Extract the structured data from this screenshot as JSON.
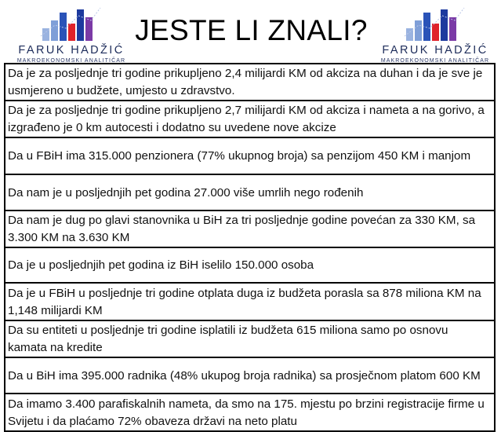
{
  "header": {
    "title": "JESTE LI ZNALI?",
    "logo_left": {
      "name": "FARUK HADŽIĆ",
      "subtitle": "MAKROEKONOMSKI ANALITIČAR",
      "colors": [
        "#9ab3e0",
        "#2a53b8",
        "#e0232b",
        "#7b3aa6",
        "#1d2c5a"
      ]
    },
    "logo_right": {
      "name": "FARUK HADŽIĆ",
      "subtitle": "MAKROEKONOMSKI ANALITIČAR"
    }
  },
  "facts": [
    "Da je za posljednje tri godine prikupljeno 2,4 milijardi KM od akciza na duhan i da je sve je usmjereno u budžete, umjesto u zdravstvo.",
    "Da je za posljednje tri godine prikupljeno 2,7 milijardi KM od akciza i nameta a na gorivo, a izgrađeno je 0 km autocesti i dodatno su uvedene nove akcize",
    "Da u FBiH ima 315.000 penzionera (77% ukupnog broja) sa penzijom 450 KM i manjom",
    "Da nam je u posljednjih pet godina 27.000 više umrlih nego rođenih",
    "Da nam je dug po glavi stanovnika u BiH za tri posljednje godine povećan za 330 KM, sa 3.300 KM na 3.630 KM",
    "Da je u posljednjih pet godina iz BiH iselilo 150.000 osoba",
    "Da je u FBiH u posljednje tri godine otplata duga iz budžeta porasla sa 878 miliona KM na 1,148 milijardi KM",
    "Da su entiteti u posljednje tri godine isplatili iz budžeta 615 miliona samo po osnovu kamata na kredite",
    "Da u BiH ima 395.000 radnika (48% ukupog broja radnika) sa prosječnom platom 600 KM",
    "Da imamo 3.400 parafiskalnih nameta, da smo na 175. mjestu po brzini registracije firme u Svijetu i da plaćamo 72% obaveza državi na neto platu"
  ]
}
